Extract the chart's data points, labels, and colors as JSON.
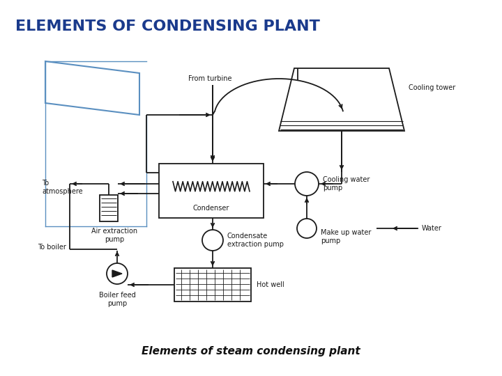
{
  "title": "ELEMENTS OF CONDENSING PLANT",
  "title_color": "#1a3a8c",
  "title_fontsize": 16,
  "subtitle": "Elements of steam condensing plant",
  "subtitle_fontsize": 11,
  "bg_color": "#ffffff",
  "diagram_color": "#1a1a1a",
  "turbine_color": "#5a8fc0",
  "labels": {
    "from_turbine": "From turbine",
    "cooling_tower": "Cooling tower",
    "cooling_water_pump": "Cooling water\npump",
    "water": "Water",
    "make_up_water_pump": "Make up water\npump",
    "condenser": "Condenser",
    "to_atmosphere": "To\natmosphere",
    "air_extraction_pump": "Air extraction\npump",
    "condensate_extraction_pump": "Condensate\nextraction pump",
    "hot_well": "Hot well",
    "boiler_feed_pump": "Boiler feed\npump",
    "to_boiler": "To boiler"
  }
}
